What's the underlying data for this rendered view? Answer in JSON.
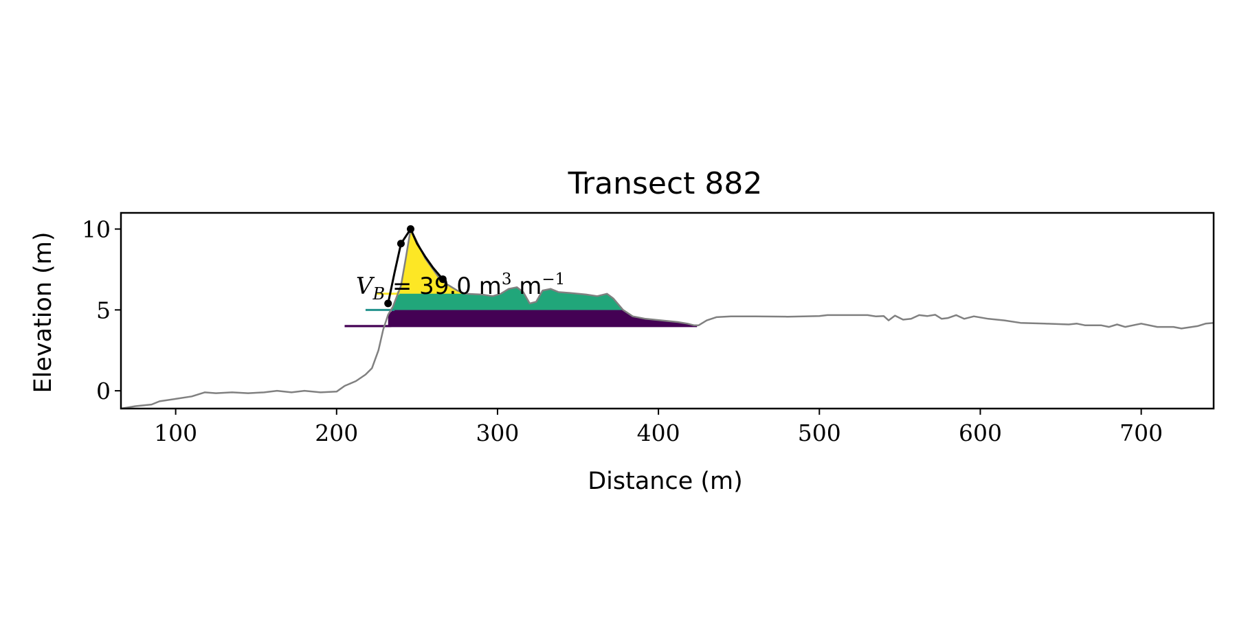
{
  "chart_data": {
    "type": "area",
    "title": "Transect 882",
    "xlabel": "Distance (m)",
    "ylabel": "Elevation (m)",
    "xlim": [
      66,
      745
    ],
    "ylim": [
      -1.1,
      11.0
    ],
    "x_ticks": [
      100,
      200,
      300,
      400,
      500,
      600,
      700
    ],
    "y_ticks": [
      0,
      5,
      10
    ],
    "grid": false,
    "annotation": {
      "symbol": "V",
      "subscript": "B",
      "value": "39.0",
      "unit": "m",
      "unit_exp": "3",
      "per": "m",
      "per_exp": "−1",
      "x": 212,
      "y": 6.5
    },
    "profile": {
      "color": "#808080",
      "points": [
        [
          66,
          -1.1
        ],
        [
          75,
          -0.95
        ],
        [
          85,
          -0.85
        ],
        [
          90,
          -0.65
        ],
        [
          100,
          -0.5
        ],
        [
          110,
          -0.35
        ],
        [
          118,
          -0.1
        ],
        [
          125,
          -0.15
        ],
        [
          135,
          -0.1
        ],
        [
          145,
          -0.15
        ],
        [
          155,
          -0.1
        ],
        [
          163,
          0.0
        ],
        [
          172,
          -0.1
        ],
        [
          180,
          0.0
        ],
        [
          190,
          -0.1
        ],
        [
          200,
          -0.05
        ],
        [
          205,
          0.3
        ],
        [
          212,
          0.6
        ],
        [
          218,
          1.0
        ],
        [
          222,
          1.4
        ],
        [
          226,
          2.5
        ],
        [
          229,
          3.8
        ],
        [
          232,
          4.7
        ],
        [
          235,
          5.2
        ],
        [
          240,
          6.5
        ],
        [
          243,
          8.2
        ],
        [
          246,
          10.0
        ],
        [
          250,
          9.2
        ],
        [
          255,
          8.2
        ],
        [
          260,
          7.5
        ],
        [
          265,
          6.8
        ],
        [
          270,
          6.5
        ],
        [
          275,
          6.2
        ],
        [
          280,
          6.0
        ],
        [
          290,
          5.95
        ],
        [
          297,
          5.85
        ],
        [
          302,
          6.0
        ],
        [
          307,
          6.3
        ],
        [
          312,
          6.4
        ],
        [
          316,
          6.1
        ],
        [
          320,
          5.4
        ],
        [
          324,
          5.5
        ],
        [
          328,
          6.2
        ],
        [
          333,
          6.3
        ],
        [
          338,
          6.1
        ],
        [
          345,
          6.05
        ],
        [
          355,
          5.95
        ],
        [
          362,
          5.85
        ],
        [
          368,
          6.0
        ],
        [
          372,
          5.7
        ],
        [
          378,
          5.0
        ],
        [
          384,
          4.6
        ],
        [
          392,
          4.45
        ],
        [
          402,
          4.35
        ],
        [
          412,
          4.25
        ],
        [
          418,
          4.15
        ],
        [
          422,
          4.05
        ],
        [
          425,
          4.05
        ],
        [
          430,
          4.35
        ],
        [
          436,
          4.55
        ],
        [
          445,
          4.6
        ],
        [
          460,
          4.6
        ],
        [
          480,
          4.58
        ],
        [
          500,
          4.62
        ],
        [
          505,
          4.68
        ],
        [
          530,
          4.68
        ],
        [
          535,
          4.6
        ],
        [
          540,
          4.62
        ],
        [
          543,
          4.35
        ],
        [
          547,
          4.65
        ],
        [
          552,
          4.4
        ],
        [
          557,
          4.45
        ],
        [
          562,
          4.68
        ],
        [
          567,
          4.62
        ],
        [
          572,
          4.7
        ],
        [
          576,
          4.45
        ],
        [
          580,
          4.5
        ],
        [
          585,
          4.68
        ],
        [
          590,
          4.45
        ],
        [
          596,
          4.6
        ],
        [
          605,
          4.45
        ],
        [
          615,
          4.35
        ],
        [
          625,
          4.2
        ],
        [
          640,
          4.15
        ],
        [
          655,
          4.1
        ],
        [
          660,
          4.15
        ],
        [
          665,
          4.05
        ],
        [
          675,
          4.05
        ],
        [
          680,
          3.95
        ],
        [
          685,
          4.1
        ],
        [
          690,
          3.95
        ],
        [
          695,
          4.05
        ],
        [
          700,
          4.15
        ],
        [
          710,
          3.95
        ],
        [
          720,
          3.95
        ],
        [
          725,
          3.85
        ],
        [
          735,
          4.0
        ],
        [
          740,
          4.15
        ],
        [
          745,
          4.2
        ]
      ]
    },
    "series": [
      {
        "color": "#440154",
        "base": 4.0,
        "level_x_start": 205,
        "x_range": [
          232,
          424
        ]
      },
      {
        "color": "#21918c",
        "base": 5.0,
        "level_x_start": 218,
        "x_range": [
          234,
          380
        ]
      },
      {
        "color": "#fde725",
        "base": 6.0,
        "level_x_start": 225,
        "x_range": [
          237,
          280
        ]
      }
    ],
    "top_band_color": "#21a67a",
    "crest_line": {
      "color": "#000000",
      "points": [
        [
          232,
          5.4
        ],
        [
          236,
          7.3
        ],
        [
          240,
          9.1
        ],
        [
          246,
          10.0
        ],
        [
          250,
          9.1
        ],
        [
          255,
          8.3
        ],
        [
          260,
          7.6
        ],
        [
          266,
          6.9
        ]
      ],
      "markers": [
        [
          232,
          5.4
        ],
        [
          240,
          9.1
        ],
        [
          246,
          10.0
        ],
        [
          266,
          6.9
        ]
      ]
    }
  }
}
